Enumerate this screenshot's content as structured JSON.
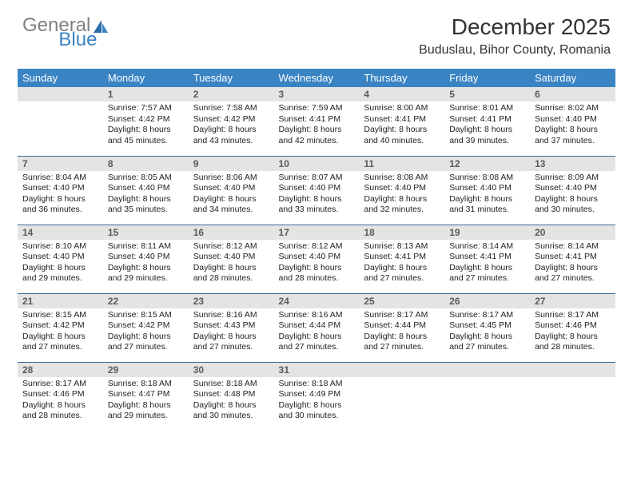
{
  "logo": {
    "text_gray": "General",
    "text_blue": "Blue"
  },
  "title": "December 2025",
  "location": "Buduslau, Bihor County, Romania",
  "colors": {
    "header_bg": "#3a84c4",
    "header_text": "#ffffff",
    "daynum_bg": "#e4e4e4",
    "daynum_text": "#5a5a5a",
    "body_text": "#222222",
    "rule": "#3a6a9a",
    "logo_gray": "#808080",
    "logo_blue": "#3a84c4"
  },
  "day_headers": [
    "Sunday",
    "Monday",
    "Tuesday",
    "Wednesday",
    "Thursday",
    "Friday",
    "Saturday"
  ],
  "weeks": [
    [
      {
        "n": "",
        "sunrise": "",
        "sunset": "",
        "daylight": ""
      },
      {
        "n": "1",
        "sunrise": "7:57 AM",
        "sunset": "4:42 PM",
        "daylight": "8 hours and 45 minutes."
      },
      {
        "n": "2",
        "sunrise": "7:58 AM",
        "sunset": "4:42 PM",
        "daylight": "8 hours and 43 minutes."
      },
      {
        "n": "3",
        "sunrise": "7:59 AM",
        "sunset": "4:41 PM",
        "daylight": "8 hours and 42 minutes."
      },
      {
        "n": "4",
        "sunrise": "8:00 AM",
        "sunset": "4:41 PM",
        "daylight": "8 hours and 40 minutes."
      },
      {
        "n": "5",
        "sunrise": "8:01 AM",
        "sunset": "4:41 PM",
        "daylight": "8 hours and 39 minutes."
      },
      {
        "n": "6",
        "sunrise": "8:02 AM",
        "sunset": "4:40 PM",
        "daylight": "8 hours and 37 minutes."
      }
    ],
    [
      {
        "n": "7",
        "sunrise": "8:04 AM",
        "sunset": "4:40 PM",
        "daylight": "8 hours and 36 minutes."
      },
      {
        "n": "8",
        "sunrise": "8:05 AM",
        "sunset": "4:40 PM",
        "daylight": "8 hours and 35 minutes."
      },
      {
        "n": "9",
        "sunrise": "8:06 AM",
        "sunset": "4:40 PM",
        "daylight": "8 hours and 34 minutes."
      },
      {
        "n": "10",
        "sunrise": "8:07 AM",
        "sunset": "4:40 PM",
        "daylight": "8 hours and 33 minutes."
      },
      {
        "n": "11",
        "sunrise": "8:08 AM",
        "sunset": "4:40 PM",
        "daylight": "8 hours and 32 minutes."
      },
      {
        "n": "12",
        "sunrise": "8:08 AM",
        "sunset": "4:40 PM",
        "daylight": "8 hours and 31 minutes."
      },
      {
        "n": "13",
        "sunrise": "8:09 AM",
        "sunset": "4:40 PM",
        "daylight": "8 hours and 30 minutes."
      }
    ],
    [
      {
        "n": "14",
        "sunrise": "8:10 AM",
        "sunset": "4:40 PM",
        "daylight": "8 hours and 29 minutes."
      },
      {
        "n": "15",
        "sunrise": "8:11 AM",
        "sunset": "4:40 PM",
        "daylight": "8 hours and 29 minutes."
      },
      {
        "n": "16",
        "sunrise": "8:12 AM",
        "sunset": "4:40 PM",
        "daylight": "8 hours and 28 minutes."
      },
      {
        "n": "17",
        "sunrise": "8:12 AM",
        "sunset": "4:40 PM",
        "daylight": "8 hours and 28 minutes."
      },
      {
        "n": "18",
        "sunrise": "8:13 AM",
        "sunset": "4:41 PM",
        "daylight": "8 hours and 27 minutes."
      },
      {
        "n": "19",
        "sunrise": "8:14 AM",
        "sunset": "4:41 PM",
        "daylight": "8 hours and 27 minutes."
      },
      {
        "n": "20",
        "sunrise": "8:14 AM",
        "sunset": "4:41 PM",
        "daylight": "8 hours and 27 minutes."
      }
    ],
    [
      {
        "n": "21",
        "sunrise": "8:15 AM",
        "sunset": "4:42 PM",
        "daylight": "8 hours and 27 minutes."
      },
      {
        "n": "22",
        "sunrise": "8:15 AM",
        "sunset": "4:42 PM",
        "daylight": "8 hours and 27 minutes."
      },
      {
        "n": "23",
        "sunrise": "8:16 AM",
        "sunset": "4:43 PM",
        "daylight": "8 hours and 27 minutes."
      },
      {
        "n": "24",
        "sunrise": "8:16 AM",
        "sunset": "4:44 PM",
        "daylight": "8 hours and 27 minutes."
      },
      {
        "n": "25",
        "sunrise": "8:17 AM",
        "sunset": "4:44 PM",
        "daylight": "8 hours and 27 minutes."
      },
      {
        "n": "26",
        "sunrise": "8:17 AM",
        "sunset": "4:45 PM",
        "daylight": "8 hours and 27 minutes."
      },
      {
        "n": "27",
        "sunrise": "8:17 AM",
        "sunset": "4:46 PM",
        "daylight": "8 hours and 28 minutes."
      }
    ],
    [
      {
        "n": "28",
        "sunrise": "8:17 AM",
        "sunset": "4:46 PM",
        "daylight": "8 hours and 28 minutes."
      },
      {
        "n": "29",
        "sunrise": "8:18 AM",
        "sunset": "4:47 PM",
        "daylight": "8 hours and 29 minutes."
      },
      {
        "n": "30",
        "sunrise": "8:18 AM",
        "sunset": "4:48 PM",
        "daylight": "8 hours and 30 minutes."
      },
      {
        "n": "31",
        "sunrise": "8:18 AM",
        "sunset": "4:49 PM",
        "daylight": "8 hours and 30 minutes."
      },
      {
        "n": "",
        "sunrise": "",
        "sunset": "",
        "daylight": ""
      },
      {
        "n": "",
        "sunrise": "",
        "sunset": "",
        "daylight": ""
      },
      {
        "n": "",
        "sunrise": "",
        "sunset": "",
        "daylight": ""
      }
    ]
  ],
  "labels": {
    "sunrise": "Sunrise:",
    "sunset": "Sunset:",
    "daylight": "Daylight:"
  }
}
